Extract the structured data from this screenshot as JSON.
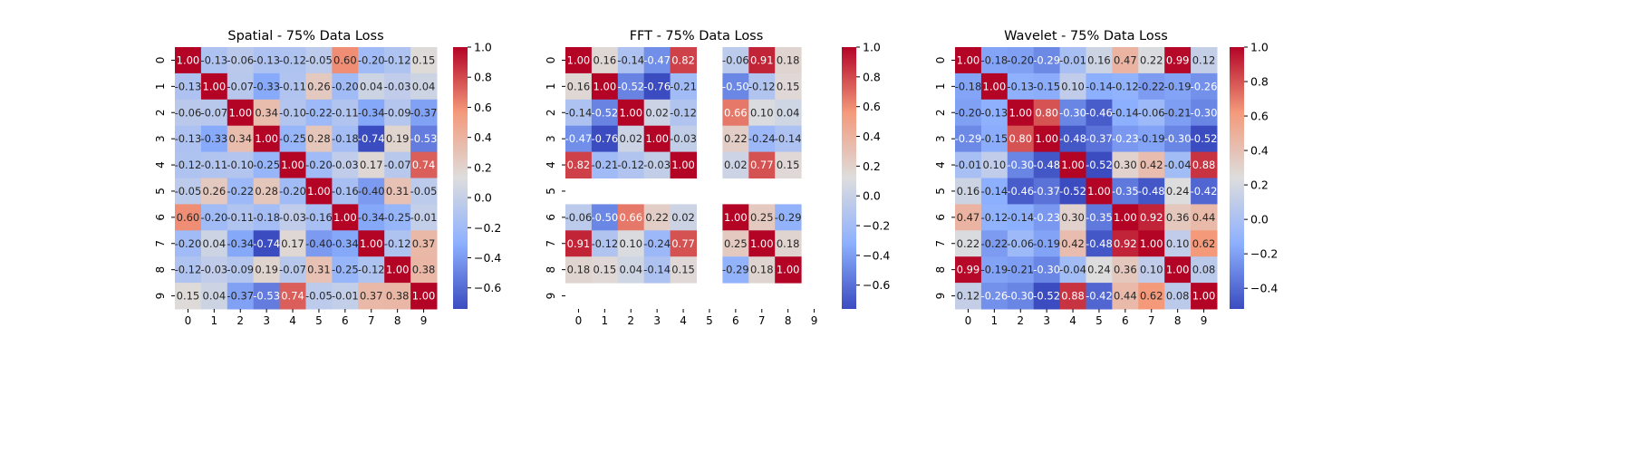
{
  "chart_data": [
    {
      "type": "heatmap",
      "title": "Spatial - 75% Data Loss",
      "x_labels": [
        "0",
        "1",
        "2",
        "3",
        "4",
        "5",
        "6",
        "7",
        "8",
        "9"
      ],
      "y_labels": [
        "0",
        "1",
        "2",
        "3",
        "4",
        "5",
        "6",
        "7",
        "8",
        "9"
      ],
      "colormap": "coolwarm",
      "colorbar_range": [
        -0.74,
        1.0
      ],
      "colorbar_ticks": [
        -0.6,
        -0.4,
        -0.2,
        0.0,
        0.2,
        0.4,
        0.6,
        0.8,
        1.0
      ],
      "matrix": [
        [
          1.0,
          -0.13,
          -0.06,
          -0.13,
          -0.12,
          -0.05,
          0.6,
          -0.2,
          -0.12,
          0.15
        ],
        [
          -0.13,
          1.0,
          -0.07,
          -0.33,
          -0.11,
          0.26,
          -0.2,
          0.04,
          -0.03,
          0.04
        ],
        [
          -0.06,
          -0.07,
          1.0,
          0.34,
          -0.1,
          -0.22,
          -0.11,
          -0.34,
          -0.09,
          -0.37
        ],
        [
          -0.13,
          -0.33,
          0.34,
          1.0,
          -0.25,
          0.28,
          -0.18,
          -0.74,
          0.19,
          -0.53
        ],
        [
          -0.12,
          -0.11,
          -0.1,
          -0.25,
          1.0,
          -0.2,
          -0.03,
          0.17,
          -0.07,
          0.74
        ],
        [
          -0.05,
          0.26,
          -0.22,
          0.28,
          -0.2,
          1.0,
          -0.16,
          -0.4,
          0.31,
          -0.05
        ],
        [
          0.6,
          -0.2,
          -0.11,
          -0.18,
          -0.03,
          -0.16,
          1.0,
          -0.34,
          -0.25,
          -0.01
        ],
        [
          -0.2,
          0.04,
          -0.34,
          -0.74,
          0.17,
          -0.4,
          -0.34,
          1.0,
          -0.12,
          0.37
        ],
        [
          -0.12,
          -0.03,
          -0.09,
          0.19,
          -0.07,
          0.31,
          -0.25,
          -0.12,
          1.0,
          0.38
        ],
        [
          0.15,
          0.04,
          -0.37,
          -0.53,
          0.74,
          -0.05,
          -0.01,
          0.37,
          0.38,
          1.0
        ]
      ]
    },
    {
      "type": "heatmap",
      "title": "FFT - 75% Data Loss",
      "x_labels": [
        "0",
        "1",
        "2",
        "3",
        "4",
        "5",
        "6",
        "7",
        "8",
        "9"
      ],
      "y_labels": [
        "0",
        "1",
        "2",
        "3",
        "4",
        "5",
        "6",
        "7",
        "8",
        "9"
      ],
      "colormap": "coolwarm",
      "colorbar_range": [
        -0.76,
        1.0
      ],
      "colorbar_ticks": [
        -0.6,
        -0.4,
        -0.2,
        0.0,
        0.2,
        0.4,
        0.6,
        0.8,
        1.0
      ],
      "matrix": [
        [
          1.0,
          0.16,
          -0.14,
          -0.47,
          0.82,
          null,
          -0.06,
          0.91,
          0.18,
          null
        ],
        [
          0.16,
          1.0,
          -0.52,
          -0.76,
          -0.21,
          null,
          -0.5,
          -0.12,
          0.15,
          null
        ],
        [
          -0.14,
          -0.52,
          1.0,
          0.02,
          -0.12,
          null,
          0.66,
          0.1,
          0.04,
          null
        ],
        [
          -0.47,
          -0.76,
          0.02,
          1.0,
          -0.03,
          null,
          0.22,
          -0.24,
          -0.14,
          null
        ],
        [
          0.82,
          -0.21,
          -0.12,
          -0.03,
          1.0,
          null,
          0.02,
          0.77,
          0.15,
          null
        ],
        [
          null,
          null,
          null,
          null,
          null,
          null,
          null,
          null,
          null,
          null
        ],
        [
          -0.06,
          -0.5,
          0.66,
          0.22,
          0.02,
          null,
          1.0,
          0.25,
          -0.29,
          null
        ],
        [
          0.91,
          -0.12,
          0.1,
          -0.24,
          0.77,
          null,
          0.25,
          1.0,
          0.18,
          null
        ],
        [
          0.18,
          0.15,
          0.04,
          -0.14,
          0.15,
          null,
          -0.29,
          0.18,
          1.0,
          null
        ],
        [
          null,
          null,
          null,
          null,
          null,
          null,
          null,
          null,
          null,
          null
        ]
      ]
    },
    {
      "type": "heatmap",
      "title": "Wavelet - 75% Data Loss",
      "x_labels": [
        "0",
        "1",
        "2",
        "3",
        "4",
        "5",
        "6",
        "7",
        "8",
        "9"
      ],
      "y_labels": [
        "0",
        "1",
        "2",
        "3",
        "4",
        "5",
        "6",
        "7",
        "8",
        "9"
      ],
      "colormap": "coolwarm",
      "colorbar_range": [
        -0.52,
        1.0
      ],
      "colorbar_ticks": [
        -0.4,
        -0.2,
        0.0,
        0.2,
        0.4,
        0.6,
        0.8,
        1.0
      ],
      "matrix": [
        [
          1.0,
          -0.18,
          -0.2,
          -0.29,
          -0.01,
          0.16,
          0.47,
          0.22,
          0.99,
          0.12
        ],
        [
          -0.18,
          1.0,
          -0.13,
          -0.15,
          0.1,
          -0.14,
          -0.12,
          -0.22,
          -0.19,
          -0.26
        ],
        [
          -0.2,
          -0.13,
          1.0,
          0.8,
          -0.3,
          -0.46,
          -0.14,
          -0.06,
          -0.21,
          -0.3
        ],
        [
          -0.29,
          -0.15,
          0.8,
          1.0,
          -0.48,
          -0.37,
          -0.23,
          -0.19,
          -0.3,
          -0.52
        ],
        [
          -0.01,
          0.1,
          -0.3,
          -0.48,
          1.0,
          -0.52,
          0.3,
          0.42,
          -0.04,
          0.88
        ],
        [
          0.16,
          -0.14,
          -0.46,
          -0.37,
          -0.52,
          1.0,
          -0.35,
          -0.48,
          0.24,
          -0.42
        ],
        [
          0.47,
          -0.12,
          -0.14,
          -0.23,
          0.3,
          -0.35,
          1.0,
          0.92,
          0.36,
          0.44
        ],
        [
          0.22,
          -0.22,
          -0.06,
          -0.19,
          0.42,
          -0.48,
          0.92,
          1.0,
          0.1,
          0.62
        ],
        [
          0.99,
          -0.19,
          -0.21,
          -0.3,
          -0.04,
          0.24,
          0.36,
          0.1,
          1.0,
          0.08
        ],
        [
          0.12,
          -0.26,
          -0.3,
          -0.52,
          0.88,
          -0.42,
          0.44,
          0.62,
          0.08,
          1.0
        ]
      ]
    }
  ]
}
